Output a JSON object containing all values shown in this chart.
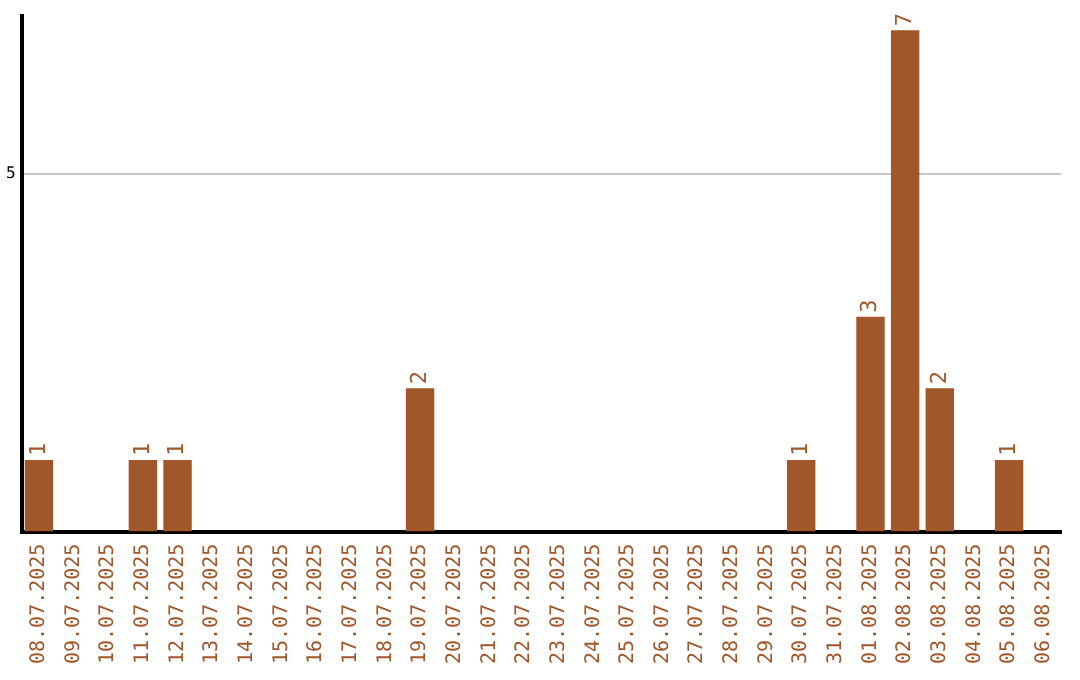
{
  "chart_data": {
    "type": "bar",
    "categories": [
      "08.07.2025",
      "09.07.2025",
      "10.07.2025",
      "11.07.2025",
      "12.07.2025",
      "13.07.2025",
      "14.07.2025",
      "15.07.2025",
      "16.07.2025",
      "17.07.2025",
      "18.07.2025",
      "19.07.2025",
      "20.07.2025",
      "21.07.2025",
      "22.07.2025",
      "23.07.2025",
      "24.07.2025",
      "25.07.2025",
      "26.07.2025",
      "27.07.2025",
      "28.07.2025",
      "29.07.2025",
      "30.07.2025",
      "31.07.2025",
      "01.08.2025",
      "02.08.2025",
      "03.08.2025",
      "04.08.2025",
      "05.08.2025",
      "06.08.2025"
    ],
    "series": [
      {
        "color": "#a0572a",
        "values": [
          1,
          null,
          null,
          1,
          1,
          null,
          null,
          null,
          null,
          null,
          null,
          2,
          null,
          null,
          null,
          null,
          null,
          null,
          null,
          null,
          null,
          null,
          1,
          null,
          3,
          7,
          2,
          null,
          1,
          null
        ]
      }
    ],
    "ylim": [
      0,
      7.2
    ],
    "yticks": [
      5
    ],
    "grid": "y",
    "data_labels": true,
    "legend": false
  }
}
